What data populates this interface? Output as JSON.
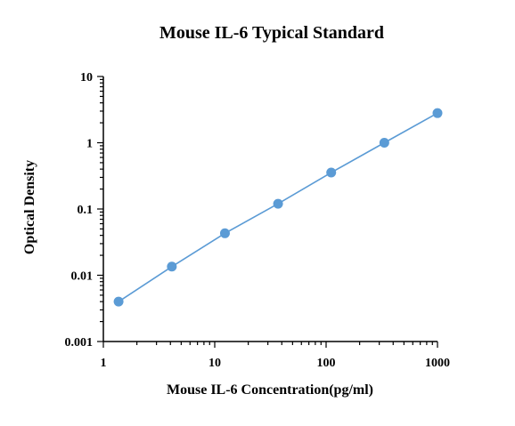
{
  "chart_data": {
    "type": "scatter",
    "title": "Mouse IL-6 Typical Standard",
    "xlabel": "Mouse IL-6 Concentration(pg/ml)",
    "ylabel": "Optical Density",
    "xscale": "log",
    "yscale": "log",
    "xlim": [
      1,
      1000
    ],
    "ylim": [
      0.001,
      10
    ],
    "x_ticks": [
      "1",
      "10",
      "100",
      "1000"
    ],
    "y_ticks": [
      "0.001",
      "0.01",
      "0.1",
      "1",
      "10"
    ],
    "grid": false,
    "legend": "none",
    "series": [
      {
        "x": [
          1.37,
          4.12,
          12.35,
          37.04,
          111.1,
          333.3,
          1000
        ],
        "y": [
          0.004,
          0.0135,
          0.043,
          0.12,
          0.355,
          1.0,
          2.8
        ],
        "color": "#5b9bd5",
        "marker": "circle",
        "line": true
      }
    ]
  }
}
